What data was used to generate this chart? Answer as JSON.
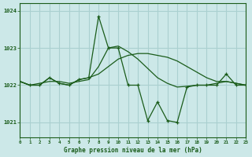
{
  "title": "Graphe pression niveau de la mer (hPa)",
  "background_color": "#cce8e8",
  "grid_color": "#aad0d0",
  "line_color": "#1a5c1a",
  "x_min": 0,
  "x_max": 23,
  "y_min": 1020.6,
  "y_max": 1024.2,
  "y_ticks": [
    1021,
    1022,
    1023,
    1024
  ],
  "x_ticks": [
    0,
    1,
    2,
    3,
    4,
    5,
    6,
    7,
    8,
    9,
    10,
    11,
    12,
    13,
    14,
    15,
    16,
    17,
    18,
    19,
    20,
    21,
    22,
    23
  ],
  "series_main_x": [
    0,
    1,
    2,
    3,
    4,
    5,
    6,
    7,
    8,
    9,
    10,
    11,
    12,
    13,
    14,
    15,
    16,
    17,
    18,
    19,
    20,
    21,
    22,
    23
  ],
  "series_main_y": [
    1022.1,
    1022.0,
    1022.0,
    1022.2,
    1022.05,
    1022.0,
    1022.15,
    1022.2,
    1023.85,
    1023.0,
    1023.0,
    1022.0,
    1022.0,
    1021.05,
    1021.55,
    1021.05,
    1021.0,
    1021.95,
    1022.0,
    1022.0,
    1022.0,
    1022.3,
    1022.0,
    1022.0
  ],
  "series_trend_x": [
    0,
    1,
    2,
    3,
    4,
    5,
    6,
    7,
    8,
    9,
    10,
    11,
    12,
    13,
    14,
    15,
    16,
    17,
    18,
    19,
    20,
    21,
    22,
    23
  ],
  "series_trend_y": [
    1022.1,
    1022.0,
    1022.0,
    1022.2,
    1022.05,
    1022.0,
    1022.15,
    1022.2,
    1022.3,
    1022.5,
    1022.7,
    1022.8,
    1022.85,
    1022.85,
    1022.8,
    1022.75,
    1022.65,
    1022.5,
    1022.35,
    1022.2,
    1022.1,
    1022.1,
    1022.05,
    1022.0
  ],
  "series_slow_x": [
    0,
    1,
    2,
    3,
    4,
    5,
    6,
    7,
    8,
    9,
    10,
    11,
    12,
    13,
    14,
    15,
    16,
    17,
    18,
    19,
    20,
    21,
    22,
    23
  ],
  "series_slow_y": [
    1022.1,
    1022.0,
    1022.05,
    1022.1,
    1022.1,
    1022.05,
    1022.1,
    1022.15,
    1022.5,
    1023.0,
    1023.05,
    1022.9,
    1022.7,
    1022.45,
    1022.2,
    1022.05,
    1021.95,
    1021.97,
    1022.0,
    1022.0,
    1022.05,
    1022.1,
    1022.05,
    1022.0
  ]
}
